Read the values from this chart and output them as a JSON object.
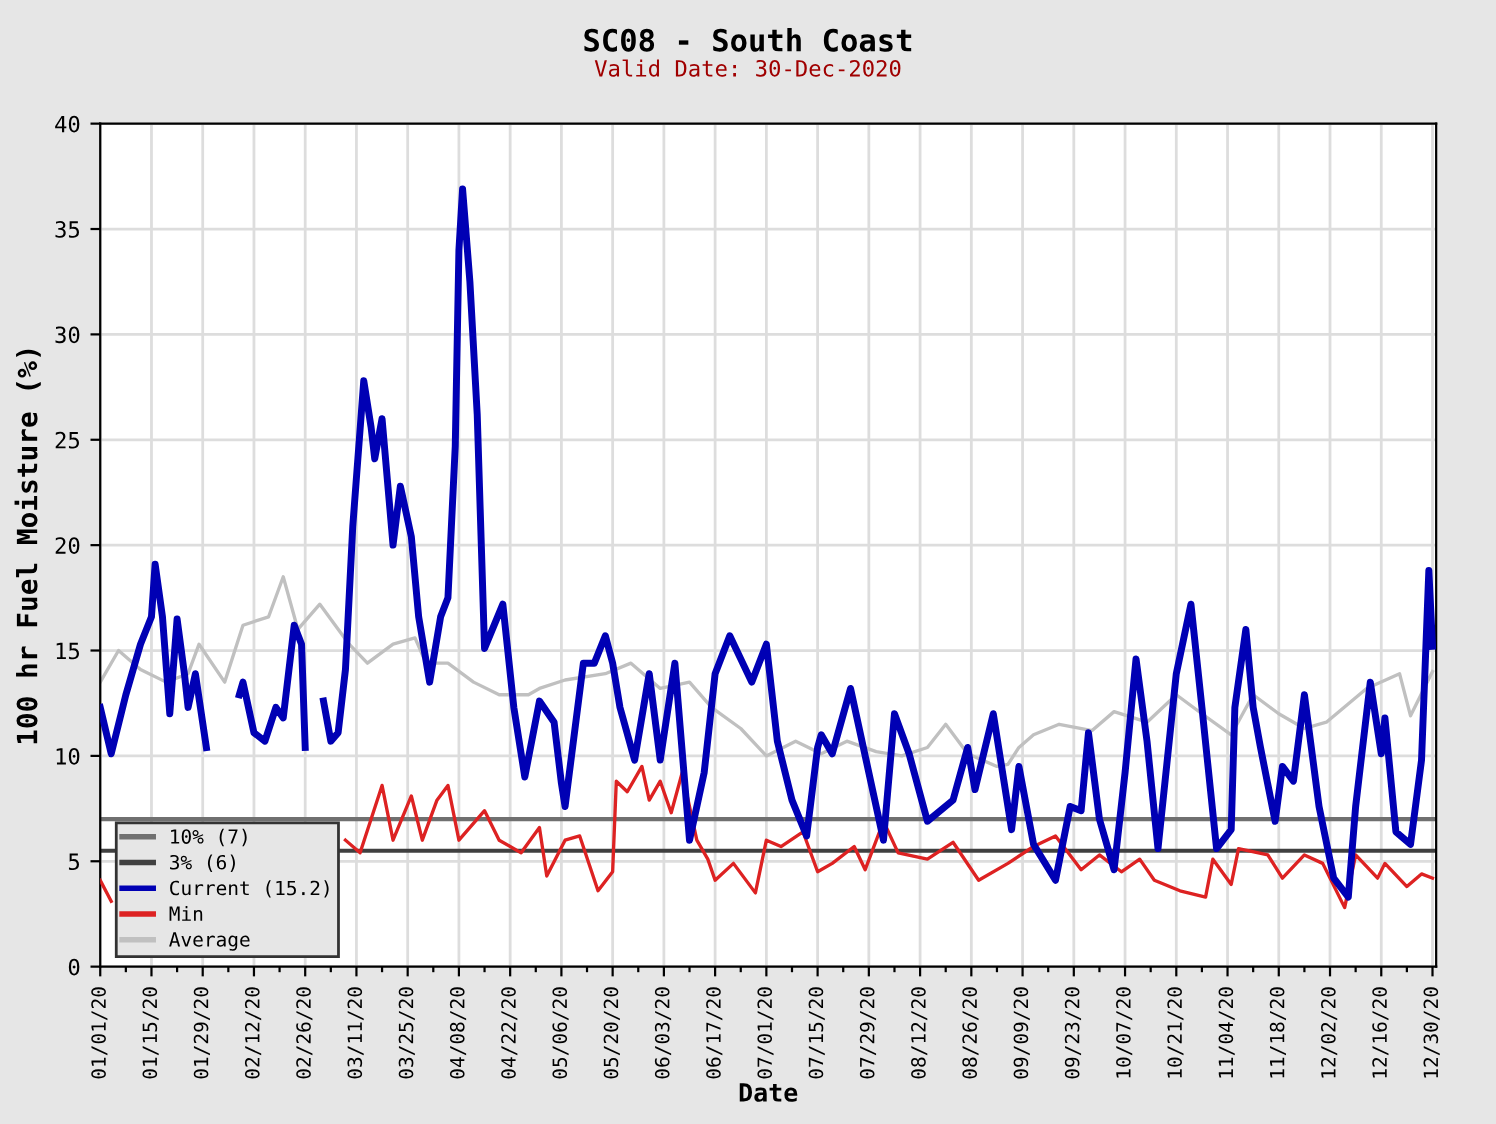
{
  "chart_data": {
    "type": "line",
    "title": "SC08 - South Coast",
    "subtitle": "Valid Date: 30-Dec-2020",
    "xlabel": "Date",
    "ylabel": "100 hr Fuel Moisture (%)",
    "xlim": [
      "2020-01-01",
      "2020-12-31"
    ],
    "ylim": [
      0,
      40
    ],
    "yticks": [
      0,
      5,
      10,
      15,
      20,
      25,
      30,
      35,
      40
    ],
    "xticks": [
      {
        "value": "2020-01-01",
        "label": "01/01/20"
      },
      {
        "value": "2020-01-08",
        "label": null
      },
      {
        "value": "2020-01-15",
        "label": "01/15/20"
      },
      {
        "value": "2020-01-22",
        "label": null
      },
      {
        "value": "2020-01-29",
        "label": "01/29/20"
      },
      {
        "value": "2020-02-05",
        "label": null
      },
      {
        "value": "2020-02-12",
        "label": "02/12/20"
      },
      {
        "value": "2020-02-19",
        "label": null
      },
      {
        "value": "2020-02-26",
        "label": "02/26/20"
      },
      {
        "value": "2020-03-04",
        "label": null
      },
      {
        "value": "2020-03-11",
        "label": "03/11/20"
      },
      {
        "value": "2020-03-18",
        "label": null
      },
      {
        "value": "2020-03-25",
        "label": "03/25/20"
      },
      {
        "value": "2020-04-01",
        "label": null
      },
      {
        "value": "2020-04-08",
        "label": "04/08/20"
      },
      {
        "value": "2020-04-15",
        "label": null
      },
      {
        "value": "2020-04-22",
        "label": "04/22/20"
      },
      {
        "value": "2020-04-29",
        "label": null
      },
      {
        "value": "2020-05-06",
        "label": "05/06/20"
      },
      {
        "value": "2020-05-13",
        "label": null
      },
      {
        "value": "2020-05-20",
        "label": "05/20/20"
      },
      {
        "value": "2020-05-27",
        "label": null
      },
      {
        "value": "2020-06-03",
        "label": "06/03/20"
      },
      {
        "value": "2020-06-10",
        "label": null
      },
      {
        "value": "2020-06-17",
        "label": "06/17/20"
      },
      {
        "value": "2020-06-24",
        "label": null
      },
      {
        "value": "2020-07-01",
        "label": "07/01/20"
      },
      {
        "value": "2020-07-08",
        "label": null
      },
      {
        "value": "2020-07-15",
        "label": "07/15/20"
      },
      {
        "value": "2020-07-22",
        "label": null
      },
      {
        "value": "2020-07-29",
        "label": "07/29/20"
      },
      {
        "value": "2020-08-05",
        "label": null
      },
      {
        "value": "2020-08-12",
        "label": "08/12/20"
      },
      {
        "value": "2020-08-19",
        "label": null
      },
      {
        "value": "2020-08-26",
        "label": "08/26/20"
      },
      {
        "value": "2020-09-02",
        "label": null
      },
      {
        "value": "2020-09-09",
        "label": "09/09/20"
      },
      {
        "value": "2020-09-16",
        "label": null
      },
      {
        "value": "2020-09-23",
        "label": "09/23/20"
      },
      {
        "value": "2020-09-30",
        "label": null
      },
      {
        "value": "2020-10-07",
        "label": "10/07/20"
      },
      {
        "value": "2020-10-14",
        "label": null
      },
      {
        "value": "2020-10-21",
        "label": "10/21/20"
      },
      {
        "value": "2020-10-28",
        "label": null
      },
      {
        "value": "2020-11-04",
        "label": "11/04/20"
      },
      {
        "value": "2020-11-11",
        "label": null
      },
      {
        "value": "2020-11-18",
        "label": "11/18/20"
      },
      {
        "value": "2020-11-25",
        "label": null
      },
      {
        "value": "2020-12-02",
        "label": "12/02/20"
      },
      {
        "value": "2020-12-09",
        "label": null
      },
      {
        "value": "2020-12-16",
        "label": "12/16/20"
      },
      {
        "value": "2020-12-23",
        "label": null
      },
      {
        "value": "2020-12-30",
        "label": "12/30/20"
      }
    ],
    "grid": true,
    "legend": "bottom left",
    "line_style": "solid",
    "marker": "none",
    "ref_lines": [
      {
        "axis": "y",
        "value": 7,
        "label": "10% (7)",
        "color": "#707070",
        "line_style": "solid"
      },
      {
        "axis": "y",
        "value": 5.5,
        "label": "3% (6)",
        "color": "#404040",
        "line_style": "solid"
      }
    ],
    "series": [
      {
        "name": "Current (15.2)",
        "color": "#0000b4",
        "x": [
          "2020-01-01",
          "2020-01-04",
          "2020-01-08",
          "2020-01-12",
          "2020-01-15",
          "2020-01-16",
          "2020-01-18",
          "2020-01-20",
          "2020-01-22",
          "2020-01-24",
          "2020-01-25",
          "2020-01-27",
          "2020-01-30",
          "2020-02-03",
          "2020-02-08",
          "2020-02-09",
          "2020-02-12",
          "2020-02-15",
          "2020-02-18",
          "2020-02-20",
          "2020-02-23",
          "2020-02-25",
          "2020-02-26",
          "2020-02-29",
          "2020-03-02",
          "2020-03-04",
          "2020-03-06",
          "2020-03-08",
          "2020-03-10",
          "2020-03-13",
          "2020-03-15",
          "2020-03-16",
          "2020-03-18",
          "2020-03-21",
          "2020-03-23",
          "2020-03-26",
          "2020-03-28",
          "2020-03-31",
          "2020-04-03",
          "2020-04-05",
          "2020-04-07",
          "2020-04-08",
          "2020-04-09",
          "2020-04-11",
          "2020-04-13",
          "2020-04-15",
          "2020-04-20",
          "2020-04-23",
          "2020-04-26",
          "2020-04-30",
          "2020-05-04",
          "2020-05-06",
          "2020-05-07",
          "2020-05-12",
          "2020-05-15",
          "2020-05-18",
          "2020-05-20",
          "2020-05-22",
          "2020-05-26",
          "2020-05-30",
          "2020-06-02",
          "2020-06-06",
          "2020-06-10",
          "2020-06-14",
          "2020-06-17",
          "2020-06-21",
          "2020-06-27",
          "2020-07-01",
          "2020-07-04",
          "2020-07-08",
          "2020-07-12",
          "2020-07-15",
          "2020-07-16",
          "2020-07-19",
          "2020-07-24",
          "2020-07-29",
          "2020-08-02",
          "2020-08-05",
          "2020-08-09",
          "2020-08-14",
          "2020-08-21",
          "2020-08-25",
          "2020-08-27",
          "2020-09-01",
          "2020-09-06",
          "2020-09-08",
          "2020-09-12",
          "2020-09-18",
          "2020-09-22",
          "2020-09-25",
          "2020-09-27",
          "2020-09-30",
          "2020-10-04",
          "2020-10-07",
          "2020-10-10",
          "2020-10-13",
          "2020-10-16",
          "2020-10-21",
          "2020-10-25",
          "2020-10-28",
          "2020-11-01",
          "2020-11-05",
          "2020-11-06",
          "2020-11-09",
          "2020-11-11",
          "2020-11-13",
          "2020-11-17",
          "2020-11-19",
          "2020-11-22",
          "2020-11-25",
          "2020-11-29",
          "2020-12-03",
          "2020-12-07",
          "2020-12-09",
          "2020-12-13",
          "2020-12-16",
          "2020-12-17",
          "2020-12-20",
          "2020-12-24",
          "2020-12-27",
          "2020-12-29",
          "2020-12-30"
        ],
        "values": [
          12.3,
          10.1,
          12.9,
          15.3,
          16.6,
          19.1,
          16.6,
          12.0,
          16.5,
          13.9,
          12.3,
          13.9,
          10.4,
          null,
          12.9,
          13.5,
          11.1,
          10.7,
          12.3,
          11.8,
          16.2,
          15.3,
          10.4,
          null,
          12.6,
          10.7,
          11.1,
          14.1,
          20.9,
          27.8,
          25.6,
          24.1,
          26.0,
          20.0,
          22.8,
          20.4,
          16.6,
          13.5,
          16.6,
          17.5,
          24.7,
          34.0,
          36.9,
          32.5,
          26.2,
          15.1,
          17.2,
          12.3,
          9.0,
          12.6,
          11.6,
          8.7,
          7.6,
          14.4,
          14.4,
          15.7,
          14.4,
          12.3,
          9.8,
          13.9,
          9.8,
          14.4,
          6.0,
          9.2,
          13.9,
          15.7,
          13.5,
          15.3,
          10.7,
          7.9,
          6.2,
          10.4,
          11.0,
          10.1,
          13.2,
          9.2,
          6.0,
          12.0,
          10.1,
          6.9,
          7.9,
          10.4,
          8.4,
          12.0,
          6.5,
          9.5,
          5.8,
          4.1,
          7.6,
          7.4,
          11.1,
          7.0,
          4.6,
          9.2,
          14.6,
          10.7,
          5.6,
          13.9,
          17.2,
          12.3,
          5.6,
          6.5,
          12.3,
          16.0,
          12.3,
          10.4,
          6.9,
          9.5,
          8.8,
          12.9,
          7.6,
          4.2,
          3.3,
          7.6,
          13.5,
          10.1,
          11.8,
          6.4,
          5.8,
          9.8,
          18.8,
          15.2
        ]
      },
      {
        "name": "Min",
        "color": "#dd2222",
        "x": [
          "2020-01-01",
          "2020-01-04",
          "2020-02-05",
          "2020-03-08",
          "2020-03-12",
          "2020-03-18",
          "2020-03-21",
          "2020-03-26",
          "2020-03-29",
          "2020-04-02",
          "2020-04-05",
          "2020-04-08",
          "2020-04-15",
          "2020-04-19",
          "2020-04-25",
          "2020-04-30",
          "2020-05-02",
          "2020-05-07",
          "2020-05-11",
          "2020-05-16",
          "2020-05-20",
          "2020-05-21",
          "2020-05-24",
          "2020-05-28",
          "2020-05-30",
          "2020-06-02",
          "2020-06-05",
          "2020-06-08",
          "2020-06-12",
          "2020-06-15",
          "2020-06-17",
          "2020-06-22",
          "2020-06-28",
          "2020-07-01",
          "2020-07-05",
          "2020-07-11",
          "2020-07-15",
          "2020-07-19",
          "2020-07-25",
          "2020-07-28",
          "2020-08-02",
          "2020-08-06",
          "2020-08-14",
          "2020-08-21",
          "2020-08-28",
          "2020-09-05",
          "2020-09-12",
          "2020-09-18",
          "2020-09-25",
          "2020-09-30",
          "2020-10-06",
          "2020-10-11",
          "2020-10-15",
          "2020-10-22",
          "2020-10-29",
          "2020-10-31",
          "2020-11-05",
          "2020-11-07",
          "2020-11-15",
          "2020-11-19",
          "2020-11-25",
          "2020-11-30",
          "2020-12-06",
          "2020-12-09",
          "2020-12-15",
          "2020-12-17",
          "2020-12-23",
          "2020-12-27",
          "2020-12-30"
        ],
        "values": [
          4.1,
          3.1,
          null,
          6.0,
          5.4,
          8.6,
          6.0,
          8.1,
          6.0,
          7.9,
          8.6,
          6.0,
          7.4,
          6.0,
          5.4,
          6.6,
          4.3,
          6.0,
          6.2,
          3.6,
          4.5,
          8.8,
          8.3,
          9.5,
          7.9,
          8.8,
          7.3,
          9.2,
          6.0,
          5.1,
          4.1,
          4.9,
          3.5,
          6.0,
          5.7,
          6.4,
          4.5,
          4.9,
          5.7,
          4.6,
          6.9,
          5.4,
          5.1,
          5.9,
          4.1,
          4.9,
          5.7,
          6.2,
          4.6,
          5.3,
          4.5,
          5.1,
          4.1,
          3.6,
          3.3,
          5.1,
          3.9,
          5.6,
          5.3,
          4.2,
          5.3,
          4.9,
          2.8,
          5.3,
          4.2,
          4.9,
          3.8,
          4.4,
          4.2
        ]
      },
      {
        "name": "Average",
        "color": "#c0c0c0",
        "x": [
          "2020-01-01",
          "2020-01-06",
          "2020-01-12",
          "2020-01-19",
          "2020-01-25",
          "2020-01-28",
          "2020-02-04",
          "2020-02-09",
          "2020-02-16",
          "2020-02-20",
          "2020-02-24",
          "2020-03-01",
          "2020-03-09",
          "2020-03-14",
          "2020-03-21",
          "2020-03-27",
          "2020-03-30",
          "2020-04-05",
          "2020-04-12",
          "2020-04-19",
          "2020-04-27",
          "2020-04-30",
          "2020-05-07",
          "2020-05-18",
          "2020-05-25",
          "2020-06-02",
          "2020-06-10",
          "2020-06-16",
          "2020-06-24",
          "2020-07-01",
          "2020-07-09",
          "2020-07-16",
          "2020-07-23",
          "2020-07-31",
          "2020-08-07",
          "2020-08-14",
          "2020-08-19",
          "2020-08-25",
          "2020-09-02",
          "2020-09-05",
          "2020-09-08",
          "2020-09-12",
          "2020-09-19",
          "2020-09-28",
          "2020-10-04",
          "2020-10-13",
          "2020-10-21",
          "2020-10-28",
          "2020-11-05",
          "2020-11-11",
          "2020-11-18",
          "2020-11-25",
          "2020-12-01",
          "2020-12-12",
          "2020-12-21",
          "2020-12-24",
          "2020-12-30"
        ],
        "values": [
          13.5,
          15.0,
          14.1,
          13.5,
          13.9,
          15.3,
          13.5,
          16.2,
          16.6,
          18.5,
          16.0,
          17.2,
          15.3,
          14.4,
          15.3,
          15.6,
          14.4,
          14.4,
          13.5,
          12.9,
          12.9,
          13.2,
          13.6,
          13.9,
          14.4,
          13.2,
          13.5,
          12.3,
          11.3,
          10.0,
          10.7,
          10.1,
          10.7,
          10.2,
          10.0,
          10.4,
          11.5,
          10.1,
          9.5,
          9.6,
          10.4,
          11.0,
          11.5,
          11.2,
          12.1,
          11.6,
          12.9,
          12.0,
          11.0,
          12.9,
          12.0,
          11.3,
          11.6,
          13.2,
          13.9,
          11.9,
          14.0
        ]
      }
    ]
  }
}
